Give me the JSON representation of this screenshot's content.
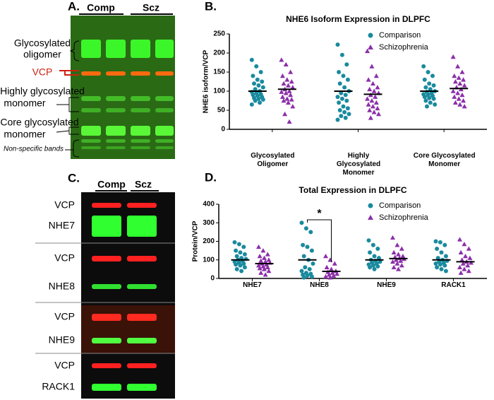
{
  "blot_a": {
    "panel_label": "A.",
    "lanes": [
      "Comp",
      "Scz"
    ],
    "labels": [
      "Glycosylated",
      "oligomer",
      "VCP",
      "Highly glycosylated",
      "monomer",
      "Core glycosylated",
      "monomer",
      "Non-specific bands"
    ]
  },
  "blot_c": {
    "panel_label": "C.",
    "lanes": [
      "Comp",
      "Scz"
    ],
    "labels": [
      "VCP",
      "NHE7",
      "VCP",
      "NHE8",
      "VCP",
      "NHE9",
      "VCP",
      "RACK1"
    ]
  },
  "chart_data": [
    {
      "type": "strip",
      "panel_label": "B.",
      "title": "NHE6 Isoform Expression in DLPFC",
      "y_label": "NHE6 isoform/VCP",
      "categories": [
        "Glycosylated Oligomer",
        "Highly Glycosylated Monomer",
        "Core Glycosylated Monomer"
      ],
      "series": [
        {
          "name": "Comparison",
          "color": "#1a8a9e",
          "marker": "circle",
          "values": [
            [
              182,
              165,
              150,
              140,
              130,
              125,
              120,
              115,
              110,
              105,
              100,
              98,
              95,
              92,
              90,
              88,
              85,
              82,
              80,
              78,
              75,
              70,
              65
            ],
            [
              222,
              195,
              170,
              150,
              140,
              130,
              120,
              110,
              100,
              95,
              90,
              85,
              80,
              75,
              70,
              60,
              55,
              50,
              45,
              40,
              35,
              30,
              25
            ],
            [
              165,
              150,
              140,
              130,
              120,
              115,
              110,
              105,
              100,
              98,
              95,
              92,
              90,
              88,
              85,
              82,
              80,
              75,
              70,
              65,
              60
            ]
          ],
          "means": [
            100,
            100,
            100
          ]
        },
        {
          "name": "Schizophrenia",
          "color": "#8b2fa8",
          "marker": "triangle",
          "values": [
            [
              182,
              170,
              150,
              140,
              130,
              125,
              120,
              115,
              110,
              105,
              100,
              98,
              95,
              90,
              85,
              80,
              78,
              75,
              70,
              60,
              40,
              20
            ],
            [
              205,
              165,
              140,
              130,
              120,
              110,
              105,
              100,
              95,
              90,
              85,
              80,
              75,
              70,
              65,
              60,
              55,
              50,
              45,
              40,
              30
            ],
            [
              190,
              165,
              150,
              140,
              135,
              130,
              125,
              120,
              115,
              110,
              105,
              100,
              95,
              90,
              85,
              80,
              75,
              70,
              65,
              60
            ]
          ],
          "means": [
            105,
            92,
            107
          ]
        }
      ],
      "ylim": [
        0,
        250
      ],
      "yticks": [
        0,
        50,
        100,
        150,
        200,
        250
      ],
      "legend": "upper right"
    },
    {
      "type": "strip",
      "panel_label": "D.",
      "title": "Total Expression in DLPFC",
      "y_label": "Protein/VCP",
      "categories": [
        "NHE7",
        "NHE8",
        "NHE9",
        "RACK1"
      ],
      "series": [
        {
          "name": "Comparison",
          "color": "#1a8a9e",
          "marker": "circle",
          "values": [
            [
              195,
              185,
              170,
              150,
              140,
              130,
              120,
              110,
              105,
              100,
              95,
              90,
              85,
              80,
              75,
              70,
              60,
              50,
              40
            ],
            [
              300,
              270,
              250,
              180,
              170,
              150,
              120,
              100,
              80,
              60,
              50,
              40,
              30,
              25,
              20,
              15,
              10,
              5
            ],
            [
              205,
              180,
              160,
              140,
              120,
              110,
              100,
              95,
              90,
              85,
              80,
              75,
              70,
              65,
              60,
              50
            ],
            [
              200,
              195,
              180,
              160,
              140,
              120,
              110,
              100,
              95,
              90,
              85,
              80,
              75,
              70,
              60,
              50,
              40
            ]
          ],
          "means": [
            100,
            100,
            100,
            100
          ]
        },
        {
          "name": "Schizophrenia",
          "color": "#8b2fa8",
          "marker": "triangle",
          "values": [
            [
              170,
              150,
              130,
              120,
              110,
              100,
              95,
              90,
              85,
              80,
              75,
              70,
              65,
              60,
              55,
              50,
              40,
              30,
              20
            ],
            [
              120,
              100,
              80,
              60,
              50,
              40,
              35,
              30,
              25,
              20,
              15,
              10,
              5
            ],
            [
              220,
              180,
              160,
              140,
              130,
              120,
              115,
              110,
              105,
              100,
              95,
              90,
              80,
              70,
              60,
              50
            ],
            [
              210,
              185,
              160,
              140,
              120,
              110,
              100,
              90,
              85,
              80,
              70,
              60,
              50,
              40,
              30
            ]
          ],
          "means": [
            80,
            38,
            107,
            90
          ]
        }
      ],
      "ylim": [
        0,
        400
      ],
      "yticks": [
        0,
        100,
        200,
        300,
        400
      ],
      "legend": "upper right",
      "annotations": [
        "*"
      ]
    }
  ]
}
